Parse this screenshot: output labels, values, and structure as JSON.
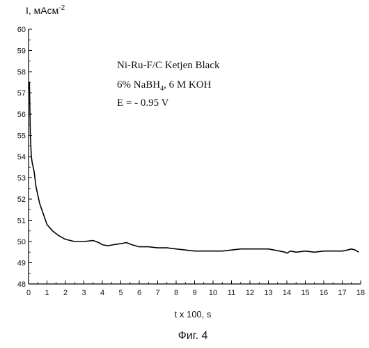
{
  "chart_data": {
    "type": "line",
    "title": "",
    "ylabel_main": "I, мАсм",
    "ylabel_sup": "-2",
    "xlabel": "t x 100, s",
    "caption": "Фиг. 4",
    "xlim": [
      0,
      18
    ],
    "ylim": [
      48,
      60
    ],
    "x_ticks": [
      0,
      1,
      2,
      3,
      4,
      5,
      6,
      7,
      8,
      9,
      10,
      11,
      12,
      13,
      14,
      15,
      16,
      17,
      18
    ],
    "y_ticks": [
      48,
      49,
      50,
      51,
      52,
      53,
      54,
      55,
      56,
      57,
      58,
      59,
      60
    ],
    "grid": false,
    "annotations": {
      "line1": "Ni-Ru-F/C Ketjen Black",
      "line2_main": "6% NaBH",
      "line2_sub": "4",
      "line2_tail": ", 6 M KOH",
      "line3": "E = - 0.95 V"
    },
    "series": [
      {
        "color": "#000000",
        "x": [
          0.0,
          0.05,
          0.1,
          0.15,
          0.2,
          0.3,
          0.4,
          0.6,
          0.8,
          1.0,
          1.3,
          1.6,
          2.0,
          2.5,
          3.0,
          3.5,
          3.8,
          4.0,
          4.3,
          4.6,
          5.0,
          5.3,
          5.6,
          6.0,
          6.5,
          7.0,
          7.5,
          8.0,
          8.5,
          9.0,
          9.5,
          10.0,
          10.5,
          11.0,
          11.5,
          12.0,
          12.5,
          13.0,
          13.3,
          13.6,
          13.9,
          14.0,
          14.2,
          14.5,
          15.0,
          15.5,
          16.0,
          16.5,
          17.0,
          17.3,
          17.5,
          17.7,
          17.9
        ],
        "y": [
          57.2,
          57.5,
          55.0,
          54.0,
          53.7,
          53.3,
          52.6,
          51.8,
          51.3,
          50.8,
          50.5,
          50.3,
          50.1,
          50.0,
          50.0,
          50.05,
          49.95,
          49.85,
          49.8,
          49.85,
          49.9,
          49.95,
          49.85,
          49.75,
          49.75,
          49.7,
          49.7,
          49.65,
          49.6,
          49.55,
          49.55,
          49.55,
          49.55,
          49.6,
          49.65,
          49.65,
          49.65,
          49.65,
          49.6,
          49.55,
          49.5,
          49.45,
          49.55,
          49.5,
          49.55,
          49.5,
          49.55,
          49.55,
          49.55,
          49.6,
          49.65,
          49.6,
          49.5
        ]
      }
    ]
  }
}
